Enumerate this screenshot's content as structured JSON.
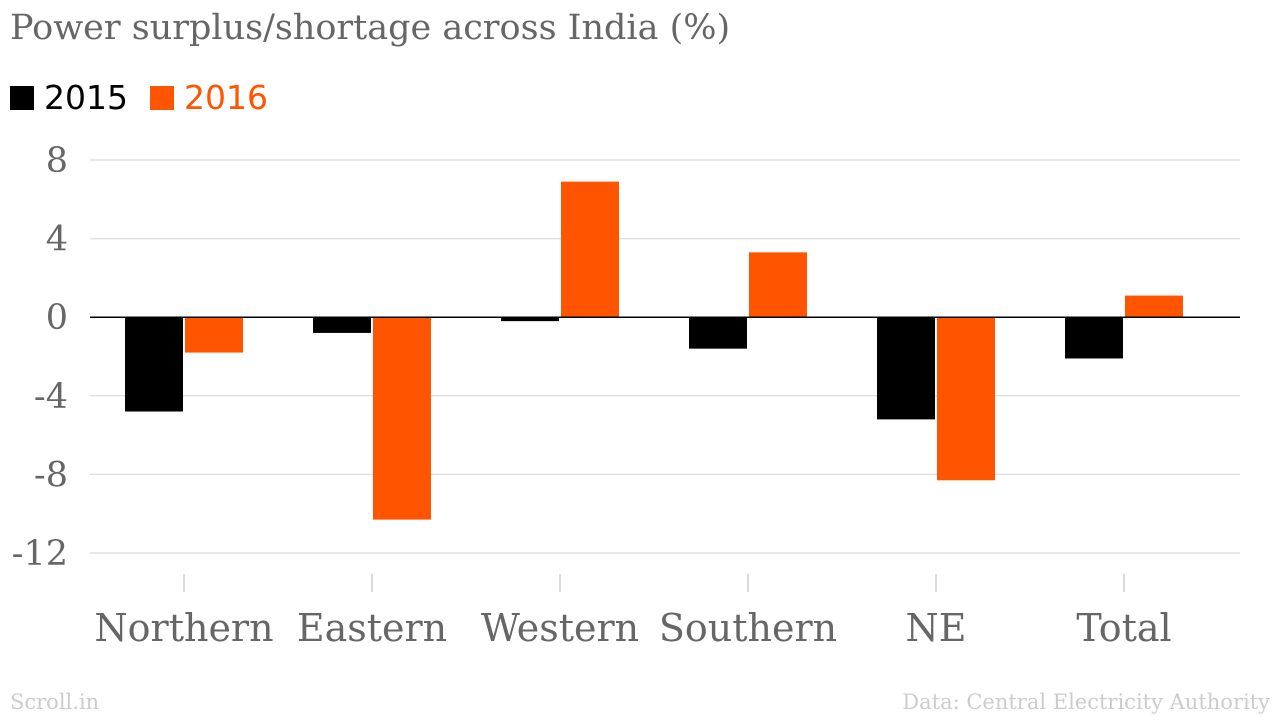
{
  "colors": {
    "accent_2015": "#000000",
    "accent_2016": "#ff5400",
    "grid": "#e0e0e0",
    "text": "#666666",
    "footer": "#cccccc"
  },
  "footer": {
    "source_left": "Scroll.in",
    "source_right": "Data: Central Electricity Authority"
  },
  "chart_data": {
    "type": "bar",
    "title": "Power surplus/shortage across India (%)",
    "xlabel": "",
    "ylabel": "",
    "categories": [
      "Northern",
      "Eastern",
      "Western",
      "Southern",
      "NE",
      "Total"
    ],
    "series": [
      {
        "name": "2015",
        "color": "#000000",
        "values": [
          -4.8,
          -0.8,
          -0.2,
          -1.6,
          -5.2,
          -2.1
        ]
      },
      {
        "name": "2016",
        "color": "#ff5400",
        "values": [
          -1.8,
          -10.3,
          6.9,
          3.3,
          -8.3,
          1.1
        ]
      }
    ],
    "ylim": [
      -12,
      8
    ],
    "yticks": [
      8,
      4,
      0,
      -4,
      -8,
      -12
    ],
    "grid": true,
    "legend_position": "top-left"
  }
}
